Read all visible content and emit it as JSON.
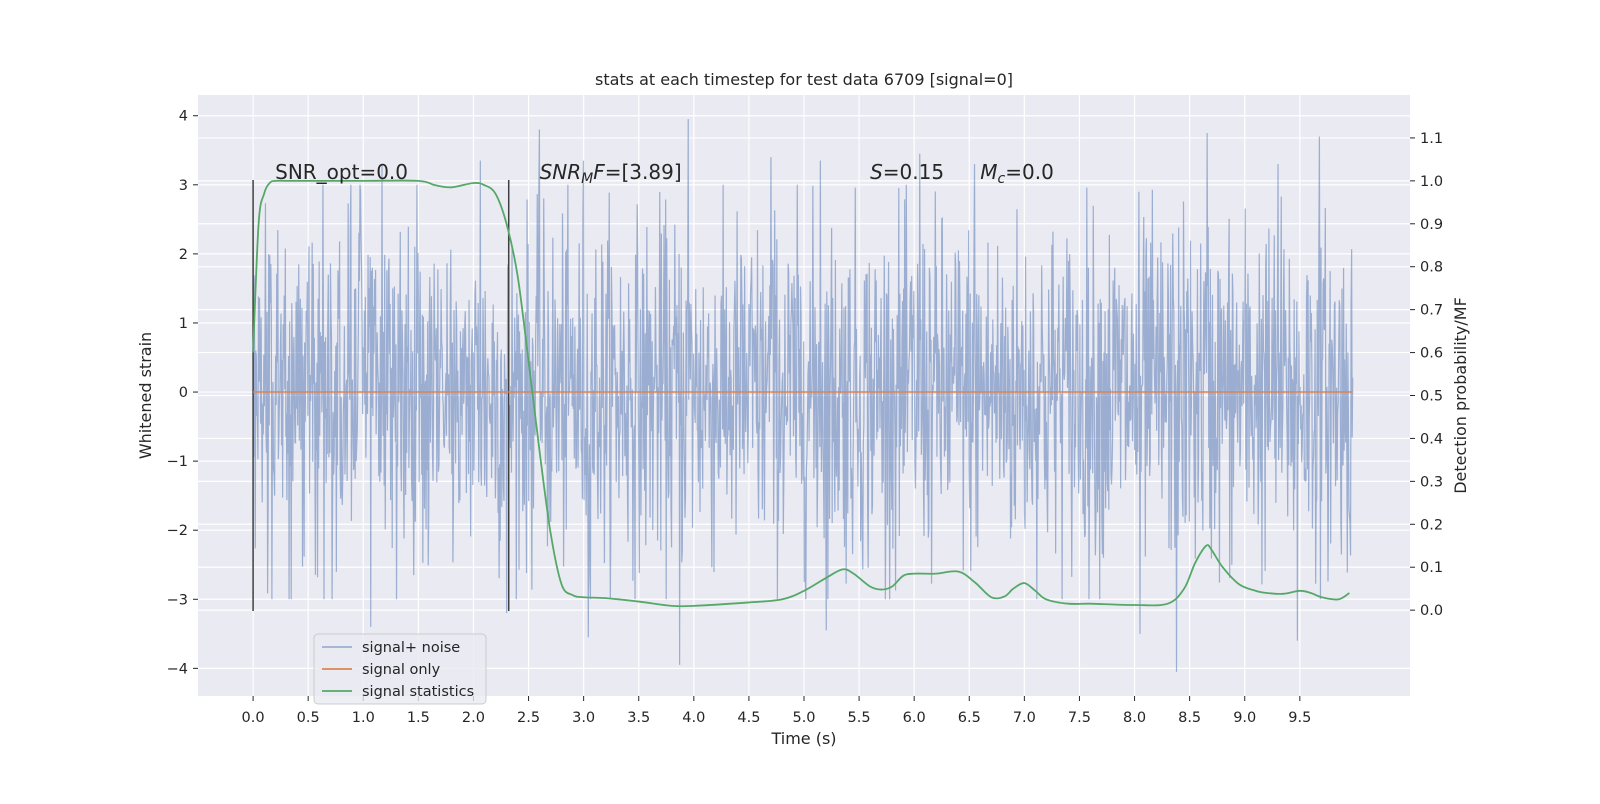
{
  "chart_data": {
    "type": "line",
    "title": "stats at each timestep for test data 6709 [signal=0]",
    "xlabel": "Time (s)",
    "ylabel": "Whitened strain",
    "y2label": "Detection probability/MF",
    "xlim": [
      -0.5,
      10.5
    ],
    "ylim": [
      -4.4,
      4.3
    ],
    "y2lim": [
      -0.2,
      1.2
    ],
    "xticks": [
      "0.0",
      "0.5",
      "1.0",
      "1.5",
      "2.0",
      "2.5",
      "3.0",
      "3.5",
      "4.0",
      "4.5",
      "5.0",
      "5.5",
      "6.0",
      "6.5",
      "7.0",
      "7.5",
      "8.0",
      "8.5",
      "9.0",
      "9.5"
    ],
    "yticks": [
      "4",
      "3",
      "2",
      "1",
      "0",
      "−1",
      "−2",
      "−3",
      "−4"
    ],
    "y2ticks": [
      "1.1",
      "1.0",
      "0.9",
      "0.8",
      "0.7",
      "0.6",
      "0.5",
      "0.4",
      "0.3",
      "0.2",
      "0.1",
      "0.0"
    ],
    "grid": true,
    "background": "#eaeaf2",
    "legend_placement": "lower left",
    "markers": {
      "vlines": [
        0.0,
        2.32
      ],
      "vline_range": [
        -3.17,
        3.07
      ],
      "color": "#404040"
    },
    "annotations": [
      {
        "id": "snr-opt",
        "text": "SNR_opt=0.0",
        "x": 0.2,
        "y": 3.2
      },
      {
        "id": "snr-mf",
        "base": "SNR",
        "sub": "M",
        "tail": "F=[3.89]",
        "x": 2.6,
        "y": 3.2
      },
      {
        "id": "s-stat",
        "base": "S",
        "tail": "=0.15",
        "x": 5.6,
        "y": 3.2
      },
      {
        "id": "mc-stat",
        "base": "M",
        "sub": "c",
        "tail": "=0.0",
        "x": 6.6,
        "y": 3.2
      }
    ],
    "series": [
      {
        "name": "signal+ noise",
        "color": "#4c72b0",
        "opacity": 0.5,
        "axis": "left",
        "x_range": [
          0.0,
          9.98
        ],
        "samples": 2048,
        "envelope_mean": 2.0,
        "peaks": [
          {
            "x": 1.17,
            "y": 3.3
          },
          {
            "x": 2.06,
            "y": 3.35
          },
          {
            "x": 2.6,
            "y": 3.8
          },
          {
            "x": 3.0,
            "y": 3.35
          },
          {
            "x": 3.95,
            "y": 3.95
          },
          {
            "x": 4.7,
            "y": 3.4
          },
          {
            "x": 5.15,
            "y": 3.35
          },
          {
            "x": 6.05,
            "y": 3.45
          },
          {
            "x": 6.55,
            "y": 3.3
          },
          {
            "x": 8.66,
            "y": 3.75
          },
          {
            "x": 9.3,
            "y": 3.3
          },
          {
            "x": 9.68,
            "y": 3.7
          }
        ],
        "troughs": [
          {
            "x": 1.07,
            "y": -3.4
          },
          {
            "x": 2.3,
            "y": -3.2
          },
          {
            "x": 3.04,
            "y": -3.55
          },
          {
            "x": 3.87,
            "y": -3.95
          },
          {
            "x": 5.2,
            "y": -3.45
          },
          {
            "x": 8.05,
            "y": -3.5
          },
          {
            "x": 8.38,
            "y": -4.05
          },
          {
            "x": 9.48,
            "y": -3.6
          }
        ]
      },
      {
        "name": "signal only",
        "color": "#dd8452",
        "axis": "left",
        "x": [
          0.0,
          9.98
        ],
        "y": [
          0.0,
          0.0
        ]
      },
      {
        "name": "signal statistics",
        "color": "#55a868",
        "axis": "right",
        "x": [
          0.0,
          0.05,
          0.1,
          0.15,
          0.2,
          0.3,
          0.5,
          1.0,
          1.5,
          1.65,
          1.8,
          2.0,
          2.1,
          2.2,
          2.3,
          2.4,
          2.5,
          2.6,
          2.7,
          2.8,
          2.9,
          3.0,
          3.2,
          3.5,
          3.8,
          4.0,
          4.5,
          4.8,
          5.0,
          5.2,
          5.35,
          5.45,
          5.6,
          5.7,
          5.8,
          5.9,
          6.0,
          6.2,
          6.4,
          6.55,
          6.7,
          6.82,
          6.9,
          7.0,
          7.1,
          7.2,
          7.4,
          7.6,
          8.0,
          8.3,
          8.45,
          8.55,
          8.65,
          8.7,
          8.8,
          8.95,
          9.1,
          9.2,
          9.35,
          9.5,
          9.6,
          9.7,
          9.85,
          9.95
        ],
        "y": [
          0.6,
          0.9,
          0.97,
          0.995,
          1.0,
          1.0,
          1.0,
          1.0,
          1.0,
          0.99,
          0.985,
          0.995,
          0.99,
          0.97,
          0.9,
          0.78,
          0.58,
          0.37,
          0.18,
          0.06,
          0.035,
          0.03,
          0.028,
          0.02,
          0.01,
          0.01,
          0.018,
          0.025,
          0.045,
          0.075,
          0.095,
          0.085,
          0.055,
          0.048,
          0.055,
          0.08,
          0.085,
          0.085,
          0.09,
          0.065,
          0.03,
          0.032,
          0.05,
          0.063,
          0.045,
          0.025,
          0.015,
          0.015,
          0.012,
          0.015,
          0.05,
          0.11,
          0.15,
          0.14,
          0.1,
          0.06,
          0.045,
          0.04,
          0.038,
          0.045,
          0.04,
          0.03,
          0.025,
          0.04
        ]
      }
    ]
  }
}
